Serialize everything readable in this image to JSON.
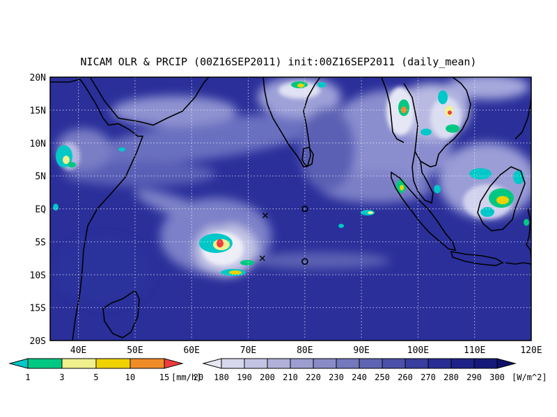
{
  "title": "NICAM OLR & PRCIP (00Z16SEP2011) init:00Z16SEP2011 (daily_mean)",
  "map": {
    "projection": "lat-lon",
    "lon_range": [
      35,
      120
    ],
    "lat_range": [
      -20,
      20
    ],
    "grid": "dotted",
    "x_ticks": [
      {
        "value": 40,
        "label": "40E"
      },
      {
        "value": 50,
        "label": "50E"
      },
      {
        "value": 60,
        "label": "60E"
      },
      {
        "value": 70,
        "label": "70E"
      },
      {
        "value": 80,
        "label": "80E"
      },
      {
        "value": 90,
        "label": "90E"
      },
      {
        "value": 100,
        "label": "100E"
      },
      {
        "value": 110,
        "label": "110E"
      },
      {
        "value": 120,
        "label": "120E"
      }
    ],
    "y_ticks": [
      {
        "value": 20,
        "label": "20N"
      },
      {
        "value": 15,
        "label": "15N"
      },
      {
        "value": 10,
        "label": "10N"
      },
      {
        "value": 5,
        "label": "5N"
      },
      {
        "value": 0,
        "label": "EQ"
      },
      {
        "value": -5,
        "label": "5S"
      },
      {
        "value": -10,
        "label": "10S"
      },
      {
        "value": -15,
        "label": "15S"
      },
      {
        "value": -20,
        "label": "20S"
      }
    ],
    "markers": [
      {
        "type": "x",
        "lon": 73,
        "lat": -1
      },
      {
        "type": "x",
        "lon": 72.5,
        "lat": -7.5
      },
      {
        "type": "o",
        "lon": 80,
        "lat": 0
      },
      {
        "type": "o",
        "lon": 80,
        "lat": -8
      }
    ],
    "colors": {
      "ocean_base": "#2a2f9a",
      "land_line": "#000000"
    }
  },
  "precip_legend": {
    "labels": [
      "1",
      "3",
      "5",
      "10",
      "15",
      "20"
    ],
    "unit": "[mm/h]",
    "colors": [
      "#00c8c8",
      "#00c882",
      "#f0f08c",
      "#f0d200",
      "#f08c28",
      "#f03c3c"
    ]
  },
  "olr_legend": {
    "labels": [
      "180",
      "190",
      "200",
      "210",
      "220",
      "230",
      "240",
      "250",
      "260",
      "270",
      "280",
      "290",
      "300"
    ],
    "unit": "[W/m^2]",
    "colors": [
      "#e8e8f4",
      "#d6d7ec",
      "#c3c4e3",
      "#b0b1da",
      "#9c9ed0",
      "#888bc6",
      "#7478bc",
      "#5f64b2",
      "#4b50a8",
      "#383d9e",
      "#282d94",
      "#1e2288",
      "#16197a",
      "#0e1068"
    ]
  }
}
